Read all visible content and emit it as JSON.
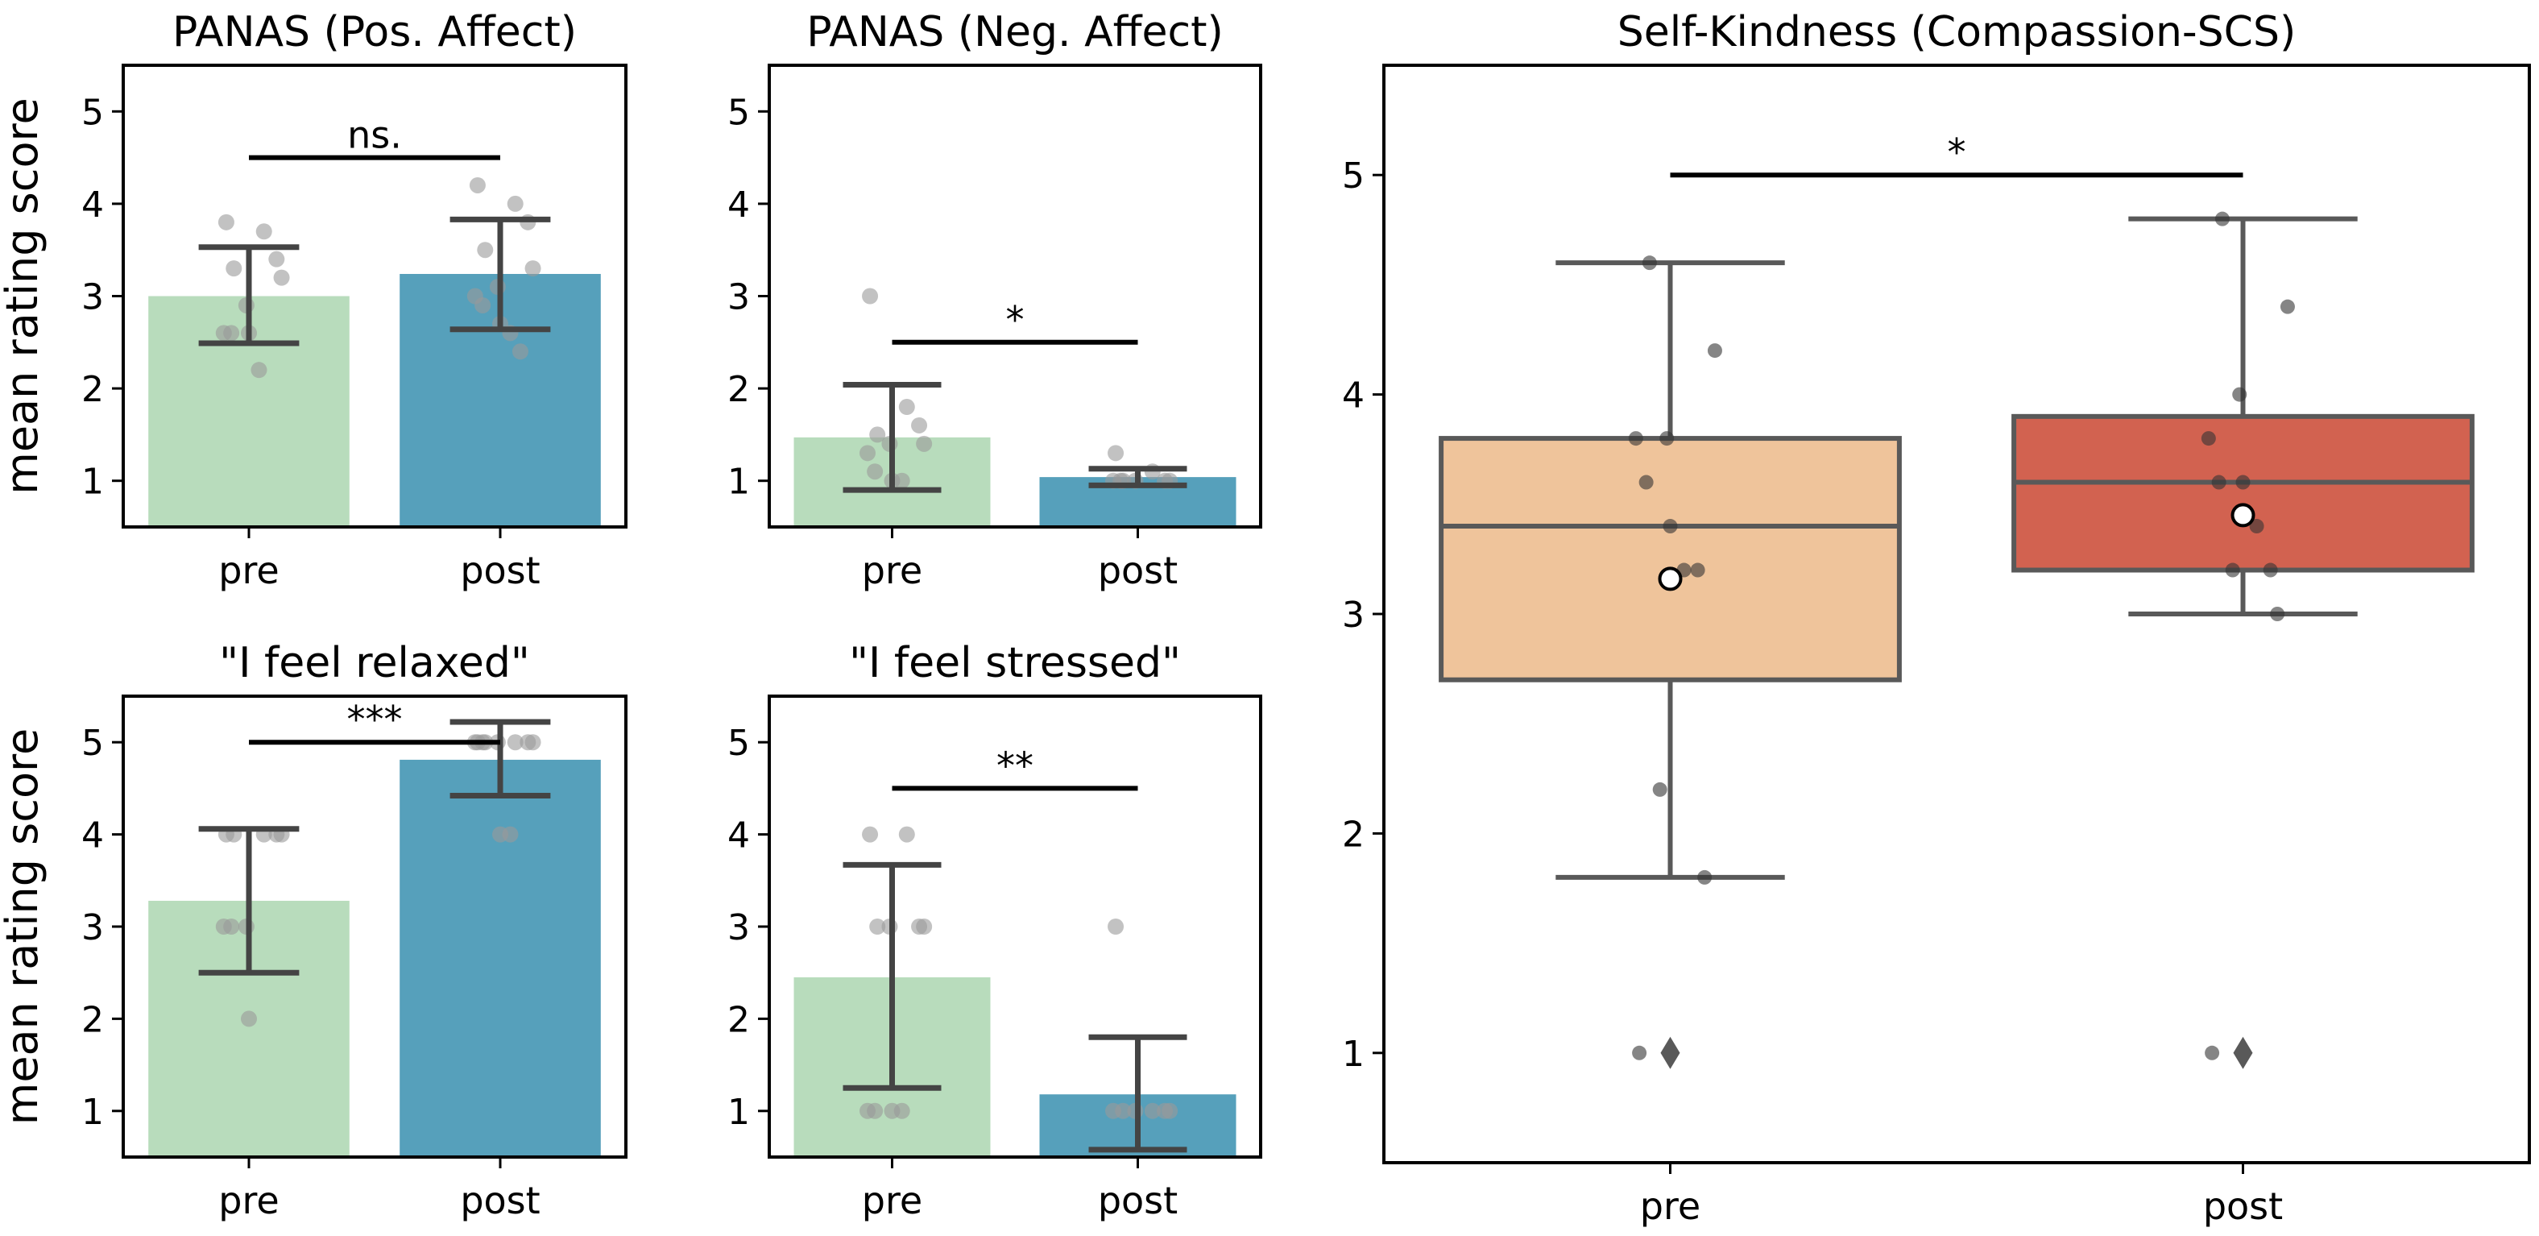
{
  "figure": {
    "ylabel": "mean rating score"
  },
  "chart_data": [
    {
      "id": "panas-pos",
      "type": "bar",
      "title": "PANAS (Pos. Affect)",
      "xlabel": "",
      "ylabel": "mean rating score",
      "categories": [
        "pre",
        "post"
      ],
      "values": [
        3.0,
        3.24
      ],
      "error_low": [
        2.49,
        2.64
      ],
      "error_high": [
        3.53,
        3.83
      ],
      "points": [
        [
          3.8,
          3.7,
          3.4,
          3.3,
          3.2,
          2.9,
          2.6,
          2.6,
          2.6,
          2.2
        ],
        [
          4.2,
          4.0,
          3.8,
          3.5,
          3.3,
          3.1,
          3.0,
          2.9,
          2.7,
          2.6,
          2.4
        ]
      ],
      "colors": [
        "#b8dcbc",
        "#56a0bb"
      ],
      "ylim": [
        0.5,
        5.5
      ],
      "yticks": [
        1,
        2,
        3,
        4,
        5
      ],
      "significance": {
        "label": "ns.",
        "y": 4.5
      }
    },
    {
      "id": "panas-neg",
      "type": "bar",
      "title": "PANAS (Neg. Affect)",
      "xlabel": "",
      "ylabel": "",
      "categories": [
        "pre",
        "post"
      ],
      "values": [
        1.47,
        1.04
      ],
      "error_low": [
        0.9,
        0.95
      ],
      "error_high": [
        2.04,
        1.13
      ],
      "points": [
        [
          3.0,
          1.8,
          1.6,
          1.5,
          1.4,
          1.4,
          1.3,
          1.1,
          1.0,
          1.0
        ],
        [
          1.3,
          1.1,
          1.0,
          1.0,
          1.0,
          1.0,
          1.0,
          1.0
        ]
      ],
      "colors": [
        "#b8dcbc",
        "#56a0bb"
      ],
      "ylim": [
        0.5,
        5.5
      ],
      "yticks": [
        1,
        2,
        3,
        4,
        5
      ],
      "significance": {
        "label": "*",
        "y": 2.5
      }
    },
    {
      "id": "relaxed",
      "type": "bar",
      "title": "\"I feel relaxed\"",
      "xlabel": "",
      "ylabel": "mean rating score",
      "categories": [
        "pre",
        "post"
      ],
      "values": [
        3.28,
        4.81
      ],
      "error_low": [
        2.5,
        4.42
      ],
      "error_high": [
        4.06,
        5.22
      ],
      "points": [
        [
          4,
          4,
          4,
          4,
          4,
          3,
          3,
          3,
          2
        ],
        [
          5,
          5,
          5,
          5,
          5,
          5,
          5,
          5,
          4,
          4
        ]
      ],
      "colors": [
        "#b8dcbc",
        "#56a0bb"
      ],
      "ylim": [
        0.5,
        5.5
      ],
      "yticks": [
        1,
        2,
        3,
        4,
        5
      ],
      "significance": {
        "label": "***",
        "y": 5.0
      }
    },
    {
      "id": "stressed",
      "type": "bar",
      "title": "\"I feel stressed\"",
      "xlabel": "",
      "ylabel": "",
      "categories": [
        "pre",
        "post"
      ],
      "values": [
        2.45,
        1.18
      ],
      "error_low": [
        1.25,
        0.58
      ],
      "error_high": [
        3.67,
        1.8
      ],
      "points": [
        [
          4,
          4,
          3,
          3,
          3,
          3,
          1,
          1,
          1,
          1
        ],
        [
          3,
          1,
          1,
          1,
          1,
          1,
          1
        ]
      ],
      "colors": [
        "#b8dcbc",
        "#56a0bb"
      ],
      "ylim": [
        0.5,
        5.5
      ],
      "yticks": [
        1,
        2,
        3,
        4,
        5
      ],
      "significance": {
        "label": "**",
        "y": 4.5
      }
    },
    {
      "id": "self-kindness",
      "type": "box",
      "title": "Self-Kindness (Compassion-SCS)",
      "xlabel": "",
      "ylabel": "",
      "categories": [
        "pre",
        "post"
      ],
      "boxes": [
        {
          "q1": 2.7,
          "median": 3.4,
          "q3": 3.8,
          "whisker_low": 1.8,
          "whisker_high": 4.6,
          "mean": 3.16,
          "outliers": [
            1.0
          ]
        },
        {
          "q1": 3.2,
          "median": 3.6,
          "q3": 3.9,
          "whisker_low": 3.0,
          "whisker_high": 4.8,
          "mean": 3.45,
          "outliers": [
            1.0
          ]
        }
      ],
      "points": [
        [
          4.6,
          4.2,
          3.8,
          3.8,
          3.6,
          3.4,
          3.2,
          3.2,
          2.2,
          1.8,
          1.0
        ],
        [
          4.8,
          4.4,
          4.0,
          3.8,
          3.6,
          3.6,
          3.4,
          3.2,
          3.2,
          3.0,
          1.0
        ]
      ],
      "colors": [
        "#efc49b",
        "#d26250"
      ],
      "ylim": [
        0.5,
        5.5
      ],
      "yticks": [
        1,
        2,
        3,
        4,
        5
      ],
      "significance": {
        "label": "*",
        "y": 5.0
      }
    }
  ]
}
